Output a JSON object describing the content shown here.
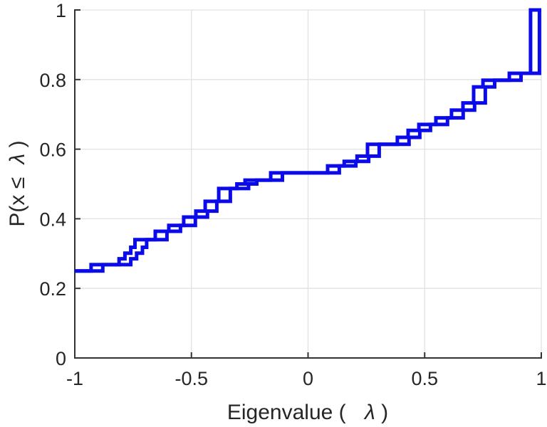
{
  "figure": {
    "title": "",
    "background": "#ffffff"
  },
  "axes": {
    "axis_color": "#333333",
    "grid_color": "#e2e2e2",
    "tick_label_color": "#262626",
    "tick_length": 8,
    "axis_line_width": 2,
    "grid_line_width": 1.3
  },
  "chart_data": {
    "type": "line",
    "subtype": "ecdf-staircase",
    "title": "",
    "xlabel": "Eigenvalue ( λ)",
    "ylabel": "P(x ≤ λ)",
    "xlabel_parts": {
      "prefix": "Eigenvalue (",
      "lambda": "λ",
      "suffix": ")"
    },
    "ylabel_parts": {
      "prefix": "P(x ",
      "leq": "≤",
      "lambda": "λ",
      "suffix": ")"
    },
    "xlim": [
      -1,
      1
    ],
    "ylim": [
      0,
      1
    ],
    "x_ticks": [
      -1,
      -0.5,
      0,
      0.5,
      1
    ],
    "x_tick_labels": [
      "-1",
      "-0.5",
      "0",
      "0.5",
      "1"
    ],
    "y_ticks": [
      0,
      0.2,
      0.4,
      0.6,
      0.8,
      1
    ],
    "y_tick_labels": [
      "0",
      "0.2",
      "0.4",
      "0.6",
      "0.8",
      "1"
    ],
    "grid": true,
    "legend": null,
    "line_color": "#0b0bea",
    "line_width": 5,
    "stair_start": [
      -1,
      0.25
    ],
    "stair_end_x": 1.0,
    "stair_jumps": [
      [
        -0.93,
        0.268
      ],
      [
        -0.81,
        0.285
      ],
      [
        -0.785,
        0.301
      ],
      [
        -0.76,
        0.318
      ],
      [
        -0.742,
        0.34
      ],
      [
        -0.655,
        0.364
      ],
      [
        -0.597,
        0.381
      ],
      [
        -0.533,
        0.405
      ],
      [
        -0.481,
        0.422
      ],
      [
        -0.441,
        0.45
      ],
      [
        -0.383,
        0.487
      ],
      [
        -0.305,
        0.5
      ],
      [
        -0.27,
        0.511
      ],
      [
        -0.16,
        0.532
      ],
      [
        0.084,
        0.552
      ],
      [
        0.155,
        0.565
      ],
      [
        0.21,
        0.58
      ],
      [
        0.255,
        0.614
      ],
      [
        0.383,
        0.634
      ],
      [
        0.429,
        0.654
      ],
      [
        0.475,
        0.671
      ],
      [
        0.548,
        0.69
      ],
      [
        0.615,
        0.712
      ],
      [
        0.664,
        0.733
      ],
      [
        0.71,
        0.779
      ],
      [
        0.75,
        0.798
      ],
      [
        0.863,
        0.818
      ],
      [
        0.954,
        1.0
      ]
    ],
    "series": [
      {
        "name": "ecdf-curve-1",
        "x_offset": 0.0,
        "x_jump_max": 1.0
      },
      {
        "name": "ecdf-curve-2",
        "x_offset": 0.05,
        "x_jump_max": 0.992
      }
    ]
  }
}
